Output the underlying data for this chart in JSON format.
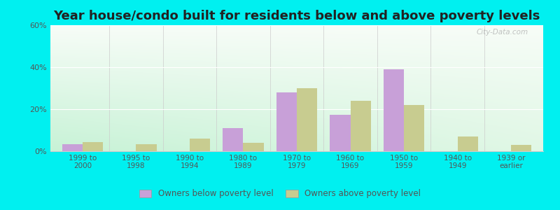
{
  "title": "Year house/condo built for residents below and above poverty levels",
  "categories": [
    "1999 to\n2000",
    "1995 to\n1998",
    "1990 to\n1994",
    "1980 to\n1989",
    "1970 to\n1979",
    "1960 to\n1969",
    "1950 to\n1959",
    "1940 to\n1949",
    "1939 or\nearlier"
  ],
  "below_poverty": [
    3.5,
    0.0,
    0.0,
    11.0,
    28.0,
    17.5,
    39.0,
    0.0,
    0.0
  ],
  "above_poverty": [
    4.5,
    3.5,
    6.0,
    4.0,
    30.0,
    24.0,
    22.0,
    7.0,
    3.0
  ],
  "below_color": "#c8a0d8",
  "above_color": "#c8cc90",
  "ylim": [
    0,
    60
  ],
  "yticks": [
    0,
    20,
    40,
    60
  ],
  "ytick_labels": [
    "0%",
    "20%",
    "40%",
    "60%"
  ],
  "bar_width": 0.38,
  "outer_bg": "#00f0f0",
  "legend_below_label": "Owners below poverty level",
  "legend_above_label": "Owners above poverty level",
  "title_fontsize": 13,
  "watermark": "City-Data.com"
}
